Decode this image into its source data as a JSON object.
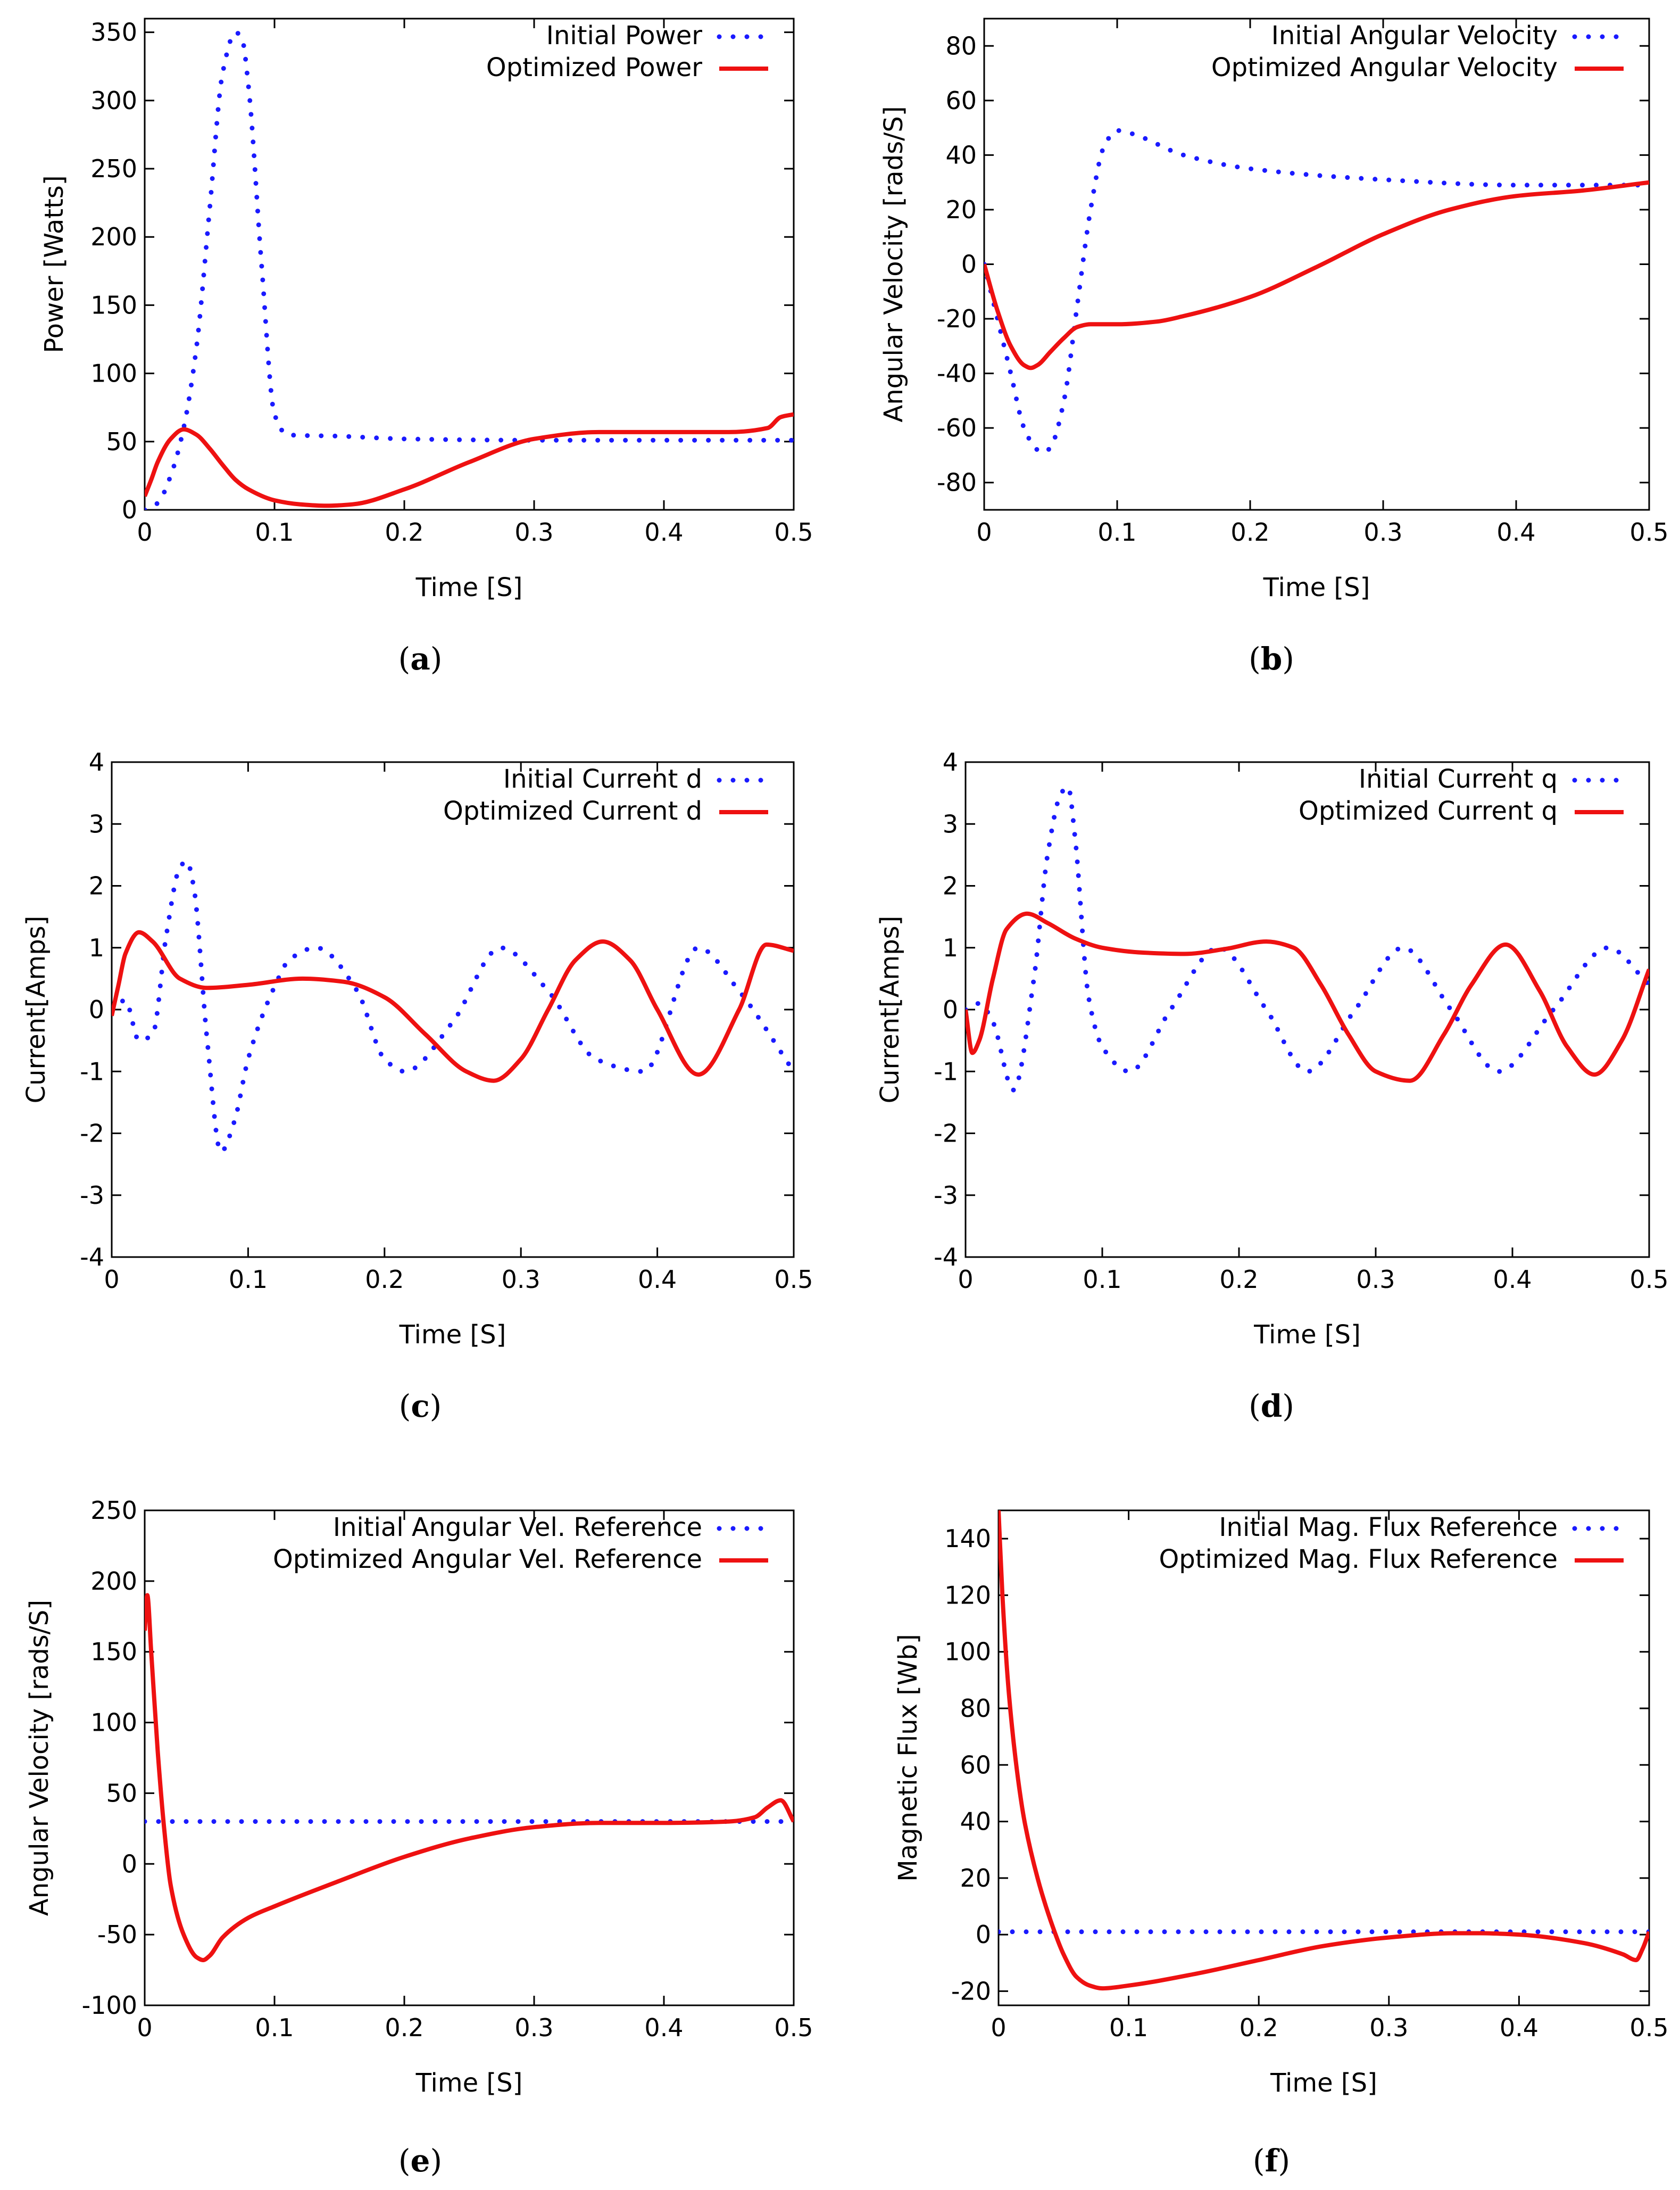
{
  "colors": {
    "initial": "#1a1aff",
    "optimized": "#ee1111",
    "axis": "#000000"
  },
  "chart_data": [
    {
      "panel": "a",
      "type": "line",
      "xlabel": "Time [S]",
      "ylabel": "Power [Watts]",
      "xlim": [
        0,
        0.5
      ],
      "ylim": [
        0,
        360
      ],
      "xticks": [
        "0",
        "0.1",
        "0.2",
        "0.3",
        "0.4",
        "0.5"
      ],
      "xtick_values": [
        0,
        0.1,
        0.2,
        0.3,
        0.4,
        0.5
      ],
      "yticks": [
        "0",
        "50",
        "100",
        "150",
        "200",
        "250",
        "300",
        "350"
      ],
      "ytick_values": [
        0,
        50,
        100,
        150,
        200,
        250,
        300,
        350
      ],
      "caption": "a",
      "series": [
        {
          "name": "Initial Power",
          "style": "dotted",
          "x": [
            0,
            0.01,
            0.02,
            0.03,
            0.04,
            0.05,
            0.06,
            0.07,
            0.075,
            0.08,
            0.09,
            0.1,
            0.11,
            0.15,
            0.2,
            0.3,
            0.4,
            0.5
          ],
          "y": [
            0,
            5,
            25,
            60,
            120,
            220,
            320,
            350,
            345,
            310,
            180,
            70,
            55,
            54,
            52,
            51,
            51,
            51
          ]
        },
        {
          "name": "Optimized Power",
          "style": "solid",
          "x": [
            0,
            0.005,
            0.01,
            0.02,
            0.03,
            0.04,
            0.05,
            0.06,
            0.07,
            0.08,
            0.1,
            0.12,
            0.14,
            0.16,
            0.2,
            0.25,
            0.3,
            0.35,
            0.4,
            0.45,
            0.48,
            0.49,
            0.5
          ],
          "y": [
            10,
            22,
            35,
            52,
            59,
            55,
            45,
            33,
            22,
            15,
            7,
            4,
            3,
            4,
            15,
            35,
            52,
            57,
            57,
            57,
            60,
            68,
            70
          ]
        }
      ]
    },
    {
      "panel": "b",
      "type": "line",
      "xlabel": "Time [S]",
      "ylabel": "Angular Velocity [rads/S]",
      "xlim": [
        0,
        0.5
      ],
      "ylim": [
        -90,
        90
      ],
      "xticks": [
        "0",
        "0.1",
        "0.2",
        "0.3",
        "0.4",
        "0.5"
      ],
      "xtick_values": [
        0,
        0.1,
        0.2,
        0.3,
        0.4,
        0.5
      ],
      "yticks": [
        "-80",
        "-60",
        "-40",
        "-20",
        "0",
        "20",
        "40",
        "60",
        "80"
      ],
      "ytick_values": [
        -80,
        -60,
        -40,
        -20,
        0,
        20,
        40,
        60,
        80
      ],
      "caption": "b",
      "series": [
        {
          "name": "Initial Angular Velocity",
          "style": "dotted",
          "x": [
            0,
            0.01,
            0.02,
            0.03,
            0.04,
            0.045,
            0.05,
            0.06,
            0.07,
            0.08,
            0.09,
            0.1,
            0.11,
            0.15,
            0.2,
            0.3,
            0.4,
            0.5
          ],
          "y": [
            0,
            -20,
            -40,
            -60,
            -68,
            -69,
            -67,
            -50,
            -15,
            20,
            43,
            49,
            48,
            40,
            35,
            31,
            29,
            29
          ]
        },
        {
          "name": "Optimized Angular Velocity",
          "style": "solid",
          "x": [
            0,
            0.01,
            0.02,
            0.03,
            0.035,
            0.04,
            0.05,
            0.06,
            0.07,
            0.08,
            0.1,
            0.13,
            0.15,
            0.2,
            0.25,
            0.3,
            0.35,
            0.4,
            0.45,
            0.5
          ],
          "y": [
            0,
            -17,
            -30,
            -37,
            -38,
            -37,
            -32,
            -27,
            -23,
            -22,
            -22,
            -21,
            -19,
            -12,
            -1,
            11,
            20,
            25,
            27,
            30
          ]
        }
      ]
    },
    {
      "panel": "c",
      "type": "line",
      "xlabel": "Time [S]",
      "ylabel": "Current[Amps]",
      "xlim": [
        0,
        0.5
      ],
      "ylim": [
        -4,
        4
      ],
      "xticks": [
        "0",
        "0.1",
        "0.2",
        "0.3",
        "0.4",
        "0.5"
      ],
      "xtick_values": [
        0,
        0.1,
        0.2,
        0.3,
        0.4,
        0.5
      ],
      "yticks": [
        "-4",
        "-3",
        "-2",
        "-1",
        "0",
        "1",
        "2",
        "3",
        "4"
      ],
      "ytick_values": [
        -4,
        -3,
        -2,
        -1,
        0,
        1,
        2,
        3,
        4
      ],
      "caption": "c",
      "series": [
        {
          "name": "Initial Current d",
          "style": "dotted",
          "x": [
            0,
            0.01,
            0.02,
            0.03,
            0.04,
            0.05,
            0.055,
            0.06,
            0.07,
            0.08,
            0.09,
            0.1,
            0.12,
            0.13,
            0.15,
            0.18,
            0.2,
            0.215,
            0.25,
            0.285,
            0.32,
            0.355,
            0.39,
            0.43,
            0.46,
            0.5
          ],
          "y": [
            0,
            0.15,
            -0.5,
            -0.4,
            1.2,
            2.3,
            2.4,
            2.0,
            -0.5,
            -2.3,
            -1.8,
            -0.8,
            0.4,
            0.8,
            1.0,
            0.3,
            -0.8,
            -1.0,
            -0.2,
            1.0,
            0.3,
            -0.8,
            -1.0,
            1.0,
            0.3,
            -1.0
          ]
        },
        {
          "name": "Optimized Current d",
          "style": "solid",
          "x": [
            0,
            0.005,
            0.01,
            0.02,
            0.03,
            0.05,
            0.07,
            0.1,
            0.14,
            0.17,
            0.2,
            0.23,
            0.26,
            0.28,
            0.3,
            0.32,
            0.34,
            0.36,
            0.38,
            0.4,
            0.43,
            0.46,
            0.48,
            0.5
          ],
          "y": [
            -0.1,
            0.4,
            0.9,
            1.25,
            1.1,
            0.5,
            0.35,
            0.4,
            0.5,
            0.45,
            0.2,
            -0.4,
            -1.0,
            -1.15,
            -0.8,
            0.0,
            0.8,
            1.1,
            0.8,
            0.0,
            -1.05,
            0.0,
            1.05,
            0.95
          ]
        }
      ]
    },
    {
      "panel": "d",
      "type": "line",
      "xlabel": "Time [S]",
      "ylabel": "Current[Amps]",
      "xlim": [
        0,
        0.5
      ],
      "ylim": [
        -4,
        4
      ],
      "xticks": [
        "0",
        "0.1",
        "0.2",
        "0.3",
        "0.4",
        "0.5"
      ],
      "xtick_values": [
        0,
        0.1,
        0.2,
        0.3,
        0.4,
        0.5
      ],
      "yticks": [
        "-4",
        "-3",
        "-2",
        "-1",
        "0",
        "1",
        "2",
        "3",
        "4"
      ],
      "ytick_values": [
        -4,
        -3,
        -2,
        -1,
        0,
        1,
        2,
        3,
        4
      ],
      "caption": "d",
      "series": [
        {
          "name": "Initial Current q",
          "style": "dotted",
          "x": [
            0,
            0.01,
            0.02,
            0.035,
            0.05,
            0.06,
            0.07,
            0.075,
            0.08,
            0.09,
            0.1,
            0.12,
            0.15,
            0.185,
            0.22,
            0.25,
            0.285,
            0.32,
            0.355,
            0.39,
            0.43,
            0.47,
            0.5
          ],
          "y": [
            0,
            0.1,
            -0.2,
            -1.3,
            0.5,
            2.5,
            3.5,
            3.6,
            2.8,
            0.2,
            -0.6,
            -1.0,
            0.0,
            1.0,
            0.0,
            -1.0,
            0.0,
            1.0,
            0.0,
            -1.0,
            0.0,
            1.0,
            0.4
          ]
        },
        {
          "name": "Optimized Current q",
          "style": "solid",
          "x": [
            0,
            0.005,
            0.01,
            0.02,
            0.03,
            0.045,
            0.06,
            0.08,
            0.1,
            0.13,
            0.16,
            0.19,
            0.22,
            0.24,
            0.26,
            0.28,
            0.3,
            0.325,
            0.35,
            0.37,
            0.395,
            0.42,
            0.44,
            0.46,
            0.48,
            0.5
          ],
          "y": [
            0,
            -0.7,
            -0.5,
            0.5,
            1.3,
            1.55,
            1.4,
            1.15,
            1.0,
            0.92,
            0.9,
            0.98,
            1.1,
            1.0,
            0.4,
            -0.4,
            -1.0,
            -1.15,
            -0.4,
            0.4,
            1.05,
            0.3,
            -0.6,
            -1.05,
            -0.5,
            0.65
          ]
        }
      ]
    },
    {
      "panel": "e",
      "type": "line",
      "xlabel": "Time [S]",
      "ylabel": "Angular Velocity [rads/S]",
      "xlim": [
        0,
        0.5
      ],
      "ylim": [
        -100,
        250
      ],
      "xticks": [
        "0",
        "0.1",
        "0.2",
        "0.3",
        "0.4",
        "0.5"
      ],
      "xtick_values": [
        0,
        0.1,
        0.2,
        0.3,
        0.4,
        0.5
      ],
      "yticks": [
        "-100",
        "-50",
        "0",
        "50",
        "100",
        "150",
        "200",
        "250"
      ],
      "ytick_values": [
        -100,
        -50,
        0,
        50,
        100,
        150,
        200,
        250
      ],
      "caption": "e",
      "series": [
        {
          "name": "Initial Angular Vel. Reference",
          "style": "dotted",
          "x": [
            0,
            0.5
          ],
          "y": [
            30,
            30
          ]
        },
        {
          "name": "Optimized Angular Vel. Reference",
          "style": "solid",
          "x": [
            0,
            0.002,
            0.005,
            0.01,
            0.015,
            0.02,
            0.03,
            0.04,
            0.045,
            0.05,
            0.06,
            0.08,
            0.1,
            0.15,
            0.2,
            0.25,
            0.3,
            0.35,
            0.4,
            0.45,
            0.47,
            0.48,
            0.49,
            0.5
          ],
          "y": [
            165,
            190,
            150,
            80,
            25,
            -15,
            -50,
            -66,
            -68,
            -65,
            -52,
            -38,
            -30,
            -12,
            5,
            18,
            26,
            29,
            29,
            30,
            33,
            40,
            45,
            30
          ]
        }
      ]
    },
    {
      "panel": "f",
      "type": "line",
      "xlabel": "Time [S]",
      "ylabel": "Magnetic Flux [Wb]",
      "xlim": [
        0,
        0.5
      ],
      "ylim": [
        -25,
        150
      ],
      "xticks": [
        "0",
        "0.1",
        "0.2",
        "0.3",
        "0.4",
        "0.5"
      ],
      "xtick_values": [
        0,
        0.1,
        0.2,
        0.3,
        0.4,
        0.5
      ],
      "yticks": [
        "-20",
        "0",
        "20",
        "40",
        "60",
        "80",
        "100",
        "120",
        "140"
      ],
      "ytick_values": [
        -20,
        0,
        20,
        40,
        60,
        80,
        100,
        120,
        140
      ],
      "caption": "f",
      "series": [
        {
          "name": "Initial Mag. Flux Reference",
          "style": "dotted",
          "x": [
            0,
            0.5
          ],
          "y": [
            1,
            1
          ]
        },
        {
          "name": "Optimized Mag. Flux Reference",
          "style": "solid",
          "x": [
            0,
            0.003,
            0.008,
            0.015,
            0.02,
            0.03,
            0.04,
            0.05,
            0.06,
            0.07,
            0.08,
            0.1,
            0.15,
            0.2,
            0.25,
            0.3,
            0.35,
            0.37,
            0.4,
            0.45,
            0.48,
            0.49,
            0.495,
            0.5
          ],
          "y": [
            150,
            120,
            85,
            55,
            40,
            20,
            5,
            -7,
            -15,
            -18,
            -19,
            -18,
            -14,
            -9,
            -4,
            -1,
            0.5,
            0.5,
            0,
            -3,
            -7,
            -9,
            -5,
            1
          ]
        }
      ]
    }
  ]
}
